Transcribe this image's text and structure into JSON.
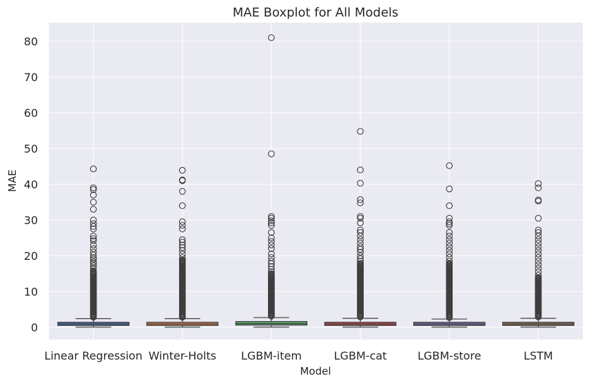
{
  "chart_data": {
    "type": "box",
    "title": "MAE Boxplot for All Models",
    "xlabel": "Model",
    "ylabel": "MAE",
    "ylim": [
      -3.8,
      85.5
    ],
    "yticks": [
      0,
      10,
      20,
      30,
      40,
      50,
      60,
      70,
      80
    ],
    "grid": true,
    "background": "#eaeaf2",
    "categories": [
      "Linear Regression",
      "Winter-Holts",
      "LGBM-item",
      "LGBM-cat",
      "LGBM-store",
      "LSTM"
    ],
    "series": [
      {
        "category": "Linear Regression",
        "color": "#4c72b0",
        "whisker_low": 0.05,
        "q1": 0.5,
        "median": 0.9,
        "q3": 1.4,
        "whisker_high": 2.4,
        "outlier_max_dense": 16,
        "outliers": [
          16.5,
          17.2,
          17.8,
          18.3,
          19.0,
          19.5,
          20.2,
          21.0,
          22.0,
          23.0,
          24.2,
          24.8,
          25.5,
          27.5,
          28.2,
          29.0,
          30.0,
          33.0,
          35.0,
          37.0,
          38.5,
          39.0,
          44.3
        ]
      },
      {
        "category": "Winter-Holts",
        "color": "#dd8452",
        "whisker_low": 0.05,
        "q1": 0.5,
        "median": 0.9,
        "q3": 1.4,
        "whisker_high": 2.4,
        "outlier_max_dense": 19,
        "outliers": [
          19.5,
          20.5,
          21.5,
          22.3,
          23.0,
          23.8,
          24.5,
          27.5,
          28.5,
          29.5,
          34.0,
          38.0,
          41.0,
          41.2,
          43.9
        ]
      },
      {
        "category": "LGBM-item",
        "color": "#55a868",
        "whisker_low": 0.05,
        "q1": 0.6,
        "median": 1.0,
        "q3": 1.6,
        "whisker_high": 2.7,
        "outlier_max_dense": 15,
        "outliers": [
          15.5,
          16.2,
          17.0,
          17.8,
          18.5,
          19.5,
          20.5,
          22.0,
          23.0,
          24.0,
          25.0,
          26.5,
          28.5,
          29.2,
          29.8,
          30.5,
          31.0,
          48.5,
          81.0
        ]
      },
      {
        "category": "LGBM-cat",
        "color": "#c44e52",
        "whisker_low": 0.05,
        "q1": 0.5,
        "median": 0.9,
        "q3": 1.4,
        "whisker_high": 2.5,
        "outlier_max_dense": 18,
        "outliers": [
          18.5,
          19.2,
          20.0,
          21.0,
          21.8,
          22.5,
          23.5,
          24.5,
          25.5,
          26.5,
          27.2,
          29.2,
          30.5,
          31.0,
          34.8,
          35.7,
          40.3,
          44.0,
          54.8
        ]
      },
      {
        "category": "LGBM-store",
        "color": "#8172b3",
        "whisker_low": 0.05,
        "q1": 0.5,
        "median": 0.9,
        "q3": 1.4,
        "whisker_high": 2.3,
        "outlier_max_dense": 18,
        "outliers": [
          18.5,
          19.5,
          20.5,
          21.5,
          22.5,
          23.5,
          24.5,
          25.5,
          26.5,
          28.5,
          29.0,
          29.5,
          30.5,
          34.0,
          38.7,
          45.2
        ]
      },
      {
        "category": "LSTM",
        "color": "#937860",
        "whisker_low": 0.05,
        "q1": 0.5,
        "median": 0.9,
        "q3": 1.4,
        "whisker_high": 2.5,
        "outlier_max_dense": 14,
        "outliers": [
          14.5,
          15.5,
          16.5,
          17.5,
          18.5,
          19.5,
          20.5,
          21.5,
          22.5,
          23.5,
          24.5,
          25.5,
          26.5,
          27.2,
          30.5,
          35.3,
          35.6,
          39.0,
          40.2
        ]
      }
    ]
  }
}
